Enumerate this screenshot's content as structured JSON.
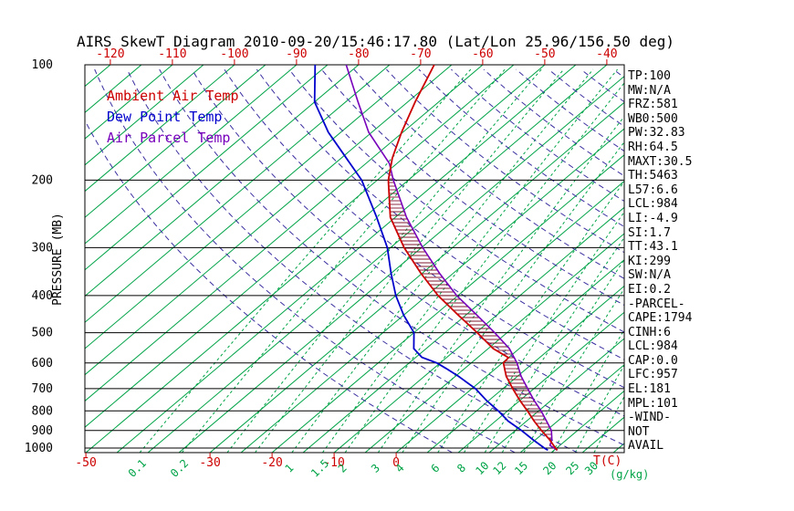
{
  "title": "AIRS SkewT Diagram 2010-09-20/15:46:17.80 (Lat/Lon 25.96/156.50 deg)",
  "legend": {
    "items": [
      {
        "label": "Ambient Air Temp",
        "color": "#cc0000"
      },
      {
        "label": "Dew Point Temp",
        "color": "#0000cc"
      },
      {
        "label": "Air Parcel Temp",
        "color": "#7700bb"
      }
    ]
  },
  "axes": {
    "pressure_label": "PRESSURE (MB)",
    "pressure_ticks": [
      100,
      200,
      300,
      400,
      500,
      600,
      700,
      800,
      900,
      1000
    ],
    "top_temp_ticks": [
      -120,
      -110,
      -100,
      -90,
      -80,
      -70,
      -60,
      -50,
      -40
    ],
    "bottom_temp_ticks": [
      -50,
      -30,
      -20,
      -10,
      0
    ],
    "bottom_temp_unit": "T(C)",
    "mixing_ratio_labels": [
      0.1,
      0.2,
      1,
      1.5,
      2,
      3,
      4,
      6,
      8,
      10,
      12,
      15,
      20,
      25,
      30
    ],
    "mixing_ratio_unit": "(g/kg)"
  },
  "stats": [
    "TP:100",
    "MW:N/A",
    "FRZ:581",
    "WB0:500",
    "PW:32.83",
    "RH:64.5",
    "MAXT:30.5",
    "TH:5463",
    "L57:6.6",
    "LCL:984",
    "LI:-4.9",
    "SI:1.7",
    "TT:43.1",
    "KI:299",
    "SW:N/A",
    "EI:0.2",
    "-PARCEL-",
    "CAPE:1794",
    "CINH:6",
    "LCL:984",
    "CAP:0.0",
    "LFC:957",
    "EL:181",
    "MPL:101",
    "-WIND-",
    "NOT",
    "AVAIL"
  ],
  "colors": {
    "temp": "#cc0000",
    "dewpoint": "#0000cc",
    "parcel": "#7700bb",
    "adiabat": "#3a30a0",
    "green": "#00a347",
    "axis": "#000000",
    "hatch": "#801830",
    "tick_red": "#cc0000"
  },
  "chart_data": {
    "type": "line",
    "diagram": "skew-t-log-p",
    "pressure_range_mb": [
      100,
      1030
    ],
    "top_axis_temp_range_C": [
      -120,
      -40
    ],
    "isotherms": {
      "min": -120,
      "max": 45,
      "step": 5
    },
    "mixing_ratio_lines": [
      0.1,
      0.2,
      0.4,
      0.6,
      1,
      1.5,
      2,
      3,
      4,
      6,
      8,
      10,
      12,
      15,
      20,
      25,
      30
    ],
    "dry_adiabats_K": {
      "min": 280,
      "max": 450,
      "step": 10
    },
    "hatch_region": {
      "from_mb": 957,
      "to_mb": 181
    },
    "series": [
      {
        "name": "Ambient Air Temp",
        "color_key": "temp",
        "points_mb_C": [
          [
            1013,
            25.5
          ],
          [
            1000,
            24.8
          ],
          [
            950,
            22.2
          ],
          [
            900,
            19.2
          ],
          [
            850,
            16.2
          ],
          [
            800,
            13.2
          ],
          [
            750,
            9.9
          ],
          [
            700,
            6.6
          ],
          [
            650,
            3.2
          ],
          [
            600,
            0.2
          ],
          [
            581,
            0.0
          ],
          [
            550,
            -4.2
          ],
          [
            500,
            -9.8
          ],
          [
            450,
            -16.2
          ],
          [
            400,
            -23.2
          ],
          [
            350,
            -30.2
          ],
          [
            300,
            -37.8
          ],
          [
            250,
            -45.8
          ],
          [
            200,
            -53.2
          ],
          [
            175,
            -56.8
          ],
          [
            150,
            -60.2
          ],
          [
            125,
            -63.8
          ],
          [
            100,
            -67.8
          ]
        ]
      },
      {
        "name": "Dew Point Temp",
        "color_key": "dewpoint",
        "points_mb_C": [
          [
            1013,
            24.0
          ],
          [
            1000,
            23.0
          ],
          [
            950,
            19.5
          ],
          [
            900,
            16.0
          ],
          [
            850,
            12.0
          ],
          [
            800,
            8.5
          ],
          [
            750,
            4.5
          ],
          [
            700,
            0.6
          ],
          [
            650,
            -4.5
          ],
          [
            620,
            -8.0
          ],
          [
            600,
            -10.5
          ],
          [
            580,
            -14.0
          ],
          [
            550,
            -17.0
          ],
          [
            500,
            -20.0
          ],
          [
            450,
            -25.0
          ],
          [
            400,
            -30.0
          ],
          [
            350,
            -35.0
          ],
          [
            300,
            -40.5
          ],
          [
            250,
            -48.0
          ],
          [
            200,
            -57.5
          ],
          [
            150,
            -72.0
          ],
          [
            125,
            -80.0
          ],
          [
            100,
            -87.0
          ]
        ]
      },
      {
        "name": "Air Parcel Temp",
        "color_key": "parcel",
        "points_mb_C": [
          [
            1013,
            25.5
          ],
          [
            984,
            23.4
          ],
          [
            950,
            22.6
          ],
          [
            900,
            20.8
          ],
          [
            850,
            18.2
          ],
          [
            800,
            15.4
          ],
          [
            750,
            12.2
          ],
          [
            700,
            9.0
          ],
          [
            650,
            5.6
          ],
          [
            600,
            2.4
          ],
          [
            550,
            -1.6
          ],
          [
            500,
            -7.0
          ],
          [
            450,
            -13.2
          ],
          [
            400,
            -20.2
          ],
          [
            350,
            -27.2
          ],
          [
            300,
            -34.8
          ],
          [
            250,
            -43.2
          ],
          [
            200,
            -52.4
          ],
          [
            181,
            -56.2
          ],
          [
            150,
            -65.5
          ],
          [
            125,
            -73.0
          ],
          [
            100,
            -82.0
          ]
        ]
      }
    ]
  }
}
